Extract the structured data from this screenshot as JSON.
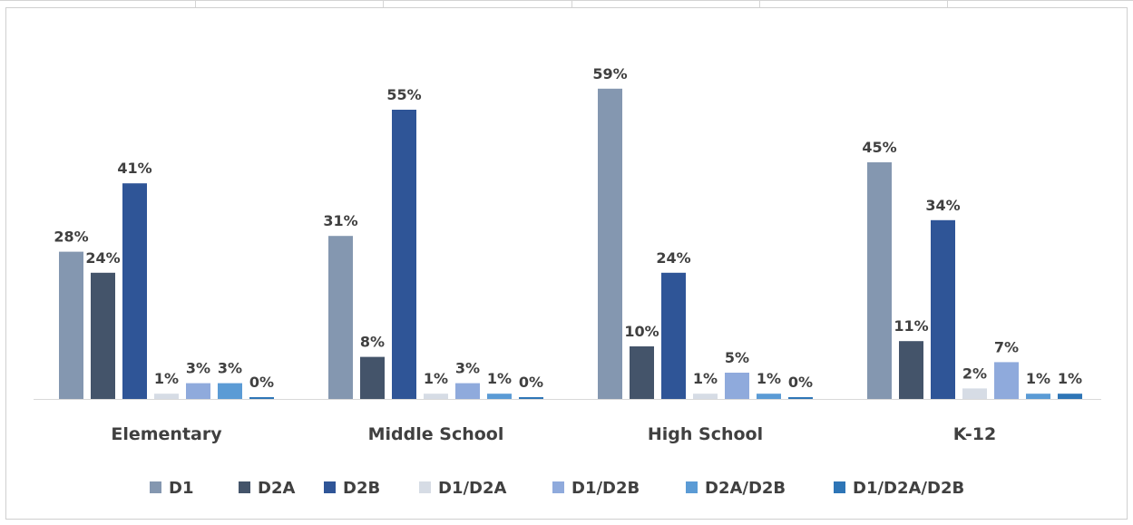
{
  "chart_data": {
    "type": "bar",
    "categories": [
      "Elementary",
      "Middle School",
      "High School",
      "K-12"
    ],
    "series": [
      {
        "name": "D1",
        "color": "#8497b0",
        "values": [
          28,
          31,
          59,
          45
        ]
      },
      {
        "name": "D2A",
        "color": "#44546a",
        "values": [
          24,
          8,
          10,
          11
        ]
      },
      {
        "name": "D2B",
        "color": "#2f5597",
        "values": [
          41,
          55,
          24,
          34
        ]
      },
      {
        "name": "D1/D2A",
        "color": "#d6dce5",
        "values": [
          1,
          1,
          1,
          2
        ]
      },
      {
        "name": "D1/D2B",
        "color": "#8faadc",
        "values": [
          3,
          3,
          5,
          7
        ]
      },
      {
        "name": "D2A/D2B",
        "color": "#5b9bd5",
        "values": [
          3,
          1,
          1,
          1
        ]
      },
      {
        "name": "D1/D2A/D2B",
        "color": "#2e75b6",
        "values": [
          0,
          0,
          0,
          1
        ]
      }
    ],
    "data_labels": [
      [
        "28%",
        "31%",
        "59%",
        "45%"
      ],
      [
        "24%",
        "8%",
        "10%",
        "11%"
      ],
      [
        "41%",
        "55%",
        "24%",
        "34%"
      ],
      [
        "1%",
        "1%",
        "1%",
        "2%"
      ],
      [
        "3%",
        "3%",
        "5%",
        "7%"
      ],
      [
        "3%",
        "1%",
        "1%",
        "1%"
      ],
      [
        "0%",
        "0%",
        "0%",
        "1%"
      ]
    ],
    "legend_position": "bottom",
    "grid": false,
    "ylim": [
      0,
      60
    ]
  }
}
